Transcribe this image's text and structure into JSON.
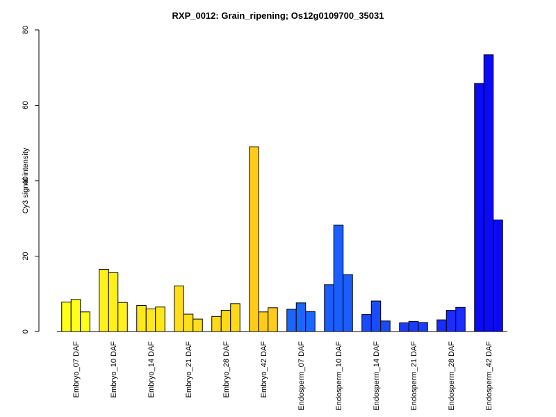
{
  "chart_data": {
    "type": "bar",
    "title": "RXP_0012: Grain_ripening; Os12g0109700_35031",
    "ylabel": "Cy3 signal intensity",
    "xlabel": "",
    "ylim": [
      0,
      80
    ],
    "yticks": [
      0,
      20,
      40,
      60,
      80
    ],
    "grid": false,
    "legend": "none",
    "replicates_per_group": 3,
    "groups": [
      {
        "label": "Embryo_07 DAF",
        "color": "#FFFF1A",
        "values": [
          7.8,
          8.5,
          5.2
        ]
      },
      {
        "label": "Embryo_10 DAF",
        "color": "#FFF01A",
        "values": [
          16.5,
          15.6,
          7.7
        ]
      },
      {
        "label": "Embryo_14 DAF",
        "color": "#FFE81A",
        "values": [
          6.9,
          6.0,
          6.5
        ]
      },
      {
        "label": "Embryo_21 DAF",
        "color": "#FFDF1A",
        "values": [
          12.1,
          4.6,
          3.3
        ]
      },
      {
        "label": "Embryo_28 DAF",
        "color": "#FFD81A",
        "values": [
          4.0,
          5.6,
          7.4
        ]
      },
      {
        "label": "Embryo_42 DAF",
        "color": "#FFCC1A",
        "values": [
          49.0,
          5.2,
          6.3
        ]
      },
      {
        "label": "Endosperm_07 DAF",
        "color": "#1A66FF",
        "values": [
          5.9,
          7.6,
          5.3
        ]
      },
      {
        "label": "Endosperm_10 DAF",
        "color": "#1A5EFF",
        "values": [
          12.4,
          28.2,
          15.1
        ]
      },
      {
        "label": "Endosperm_14 DAF",
        "color": "#1A4CFF",
        "values": [
          4.5,
          8.1,
          2.8
        ]
      },
      {
        "label": "Endosperm_21 DAF",
        "color": "#1A3CFF",
        "values": [
          2.3,
          2.7,
          2.4
        ]
      },
      {
        "label": "Endosperm_28 DAF",
        "color": "#1A2CFF",
        "values": [
          3.1,
          5.6,
          6.4
        ]
      },
      {
        "label": "Endosperm_42 DAF",
        "color": "#0A0AF5",
        "values": [
          65.8,
          73.4,
          29.6
        ]
      }
    ]
  }
}
